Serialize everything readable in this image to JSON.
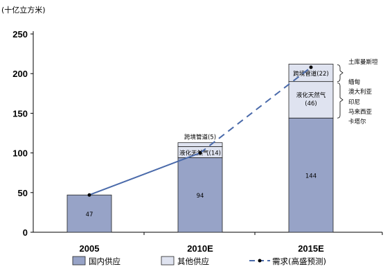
{
  "chart_data": {
    "type": "bar",
    "unit_label": "(十亿立方米)",
    "categories": [
      "2005",
      "2010E",
      "2015E"
    ],
    "ylim": [
      0,
      250
    ],
    "y_ticks": [
      "0",
      "50",
      "100",
      "150",
      "200",
      "250"
    ],
    "series": [
      {
        "name": "国内供应",
        "values": [
          47,
          94,
          144
        ],
        "color": "#97a3c7"
      },
      {
        "name": "其他供应",
        "values": [
          0,
          19,
          68
        ],
        "color": "#dfe3f0"
      }
    ],
    "segments": [
      {
        "category": "2010E",
        "label": "液化天然气(14)",
        "value": 14
      },
      {
        "category": "2010E",
        "label": "跨境管道(5)",
        "value": 5
      },
      {
        "category": "2015E",
        "label": "液化天然气",
        "sub_label": "(46)",
        "value": 46
      },
      {
        "category": "2015E",
        "label": "跨境管道(22)",
        "value": 22
      }
    ],
    "bar_labels": [
      "47",
      "94",
      "144"
    ],
    "demand": {
      "name": "需求(高盛预测)",
      "values": [
        47,
        100,
        208
      ],
      "color": "#4a6aaa"
    },
    "annotations": {
      "pipeline_sources": [
        "土库曼斯坦",
        "缅甸"
      ],
      "lng_sources": [
        "澳大利亚",
        "印尼",
        "马来西亚",
        "卡塔尔"
      ]
    },
    "legend_position": "bottom"
  }
}
